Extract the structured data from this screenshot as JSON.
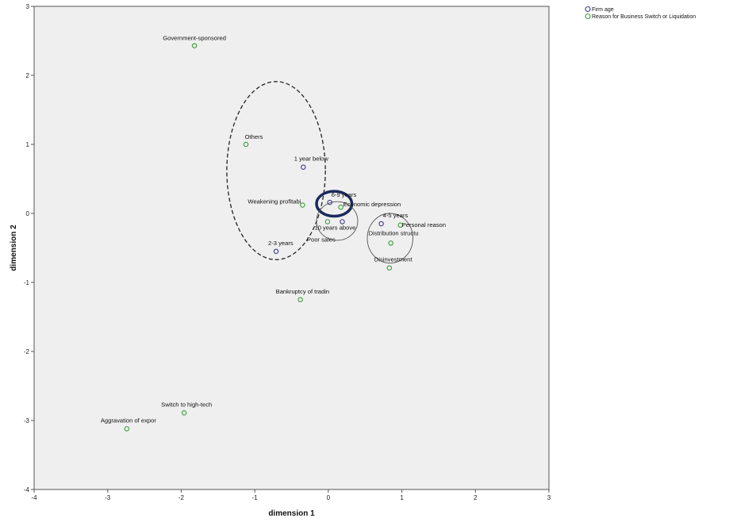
{
  "chart_data": {
    "type": "scatter",
    "xlabel": "dimension 1",
    "ylabel": "dimension 2",
    "xlim": [
      -4,
      3
    ],
    "ylim": [
      -4,
      3
    ],
    "xticks": [
      "-4",
      "-3",
      "-2",
      "-1",
      "0",
      "1",
      "2",
      "3"
    ],
    "yticks": [
      "-4",
      "-3",
      "-2",
      "-1",
      "0",
      "1",
      "2",
      "3"
    ],
    "legend_position": "top-right, outside plot",
    "plot_background": "#efefef",
    "series": [
      {
        "name": "Firm age",
        "color": "#3a3a8c",
        "points": [
          {
            "label": "1 year below",
            "x": -0.34,
            "y": 0.67
          },
          {
            "label": "2-3 years",
            "x": -0.71,
            "y": -0.55
          },
          {
            "label": "4-5 years",
            "x": 0.72,
            "y": -0.15
          },
          {
            "label": "6-9 years",
            "x": 0.02,
            "y": 0.16
          },
          {
            "label": "10 years above",
            "x": 0.19,
            "y": -0.12
          }
        ]
      },
      {
        "name": "Reason for Business Switch or Liquidation",
        "color": "#3c9c3c",
        "points": [
          {
            "label": "Government-sponsored",
            "x": -1.82,
            "y": 2.43
          },
          {
            "label": "Others",
            "x": -1.12,
            "y": 1.0
          },
          {
            "label": "Weakening profitabi",
            "x": -0.35,
            "y": 0.12
          },
          {
            "label": "Economic depression",
            "x": 0.17,
            "y": 0.09
          },
          {
            "label": "Personal reason",
            "x": 0.98,
            "y": -0.17
          },
          {
            "label": "Distribution structu",
            "x": 0.85,
            "y": -0.43
          },
          {
            "label": "Poor sales",
            "x": -0.01,
            "y": -0.12
          },
          {
            "label": "Disinvestment",
            "x": 0.83,
            "y": -0.79
          },
          {
            "label": "Bankruptcy of tradin",
            "x": -0.38,
            "y": -1.25
          },
          {
            "label": "Switch to high-tech",
            "x": -1.96,
            "y": -2.89
          },
          {
            "label": "Aggravation of expor",
            "x": -2.74,
            "y": -3.12
          }
        ]
      }
    ],
    "annotations": [
      {
        "shape": "ellipse",
        "style": "dashed",
        "cx": -0.71,
        "cy": 0.62,
        "rx": 0.67,
        "ry": 1.29
      },
      {
        "shape": "ellipse",
        "style": "bold",
        "cx": 0.08,
        "cy": 0.14,
        "rx": 0.24,
        "ry": 0.18
      },
      {
        "shape": "ellipse",
        "style": "thin",
        "cx": 0.12,
        "cy": -0.11,
        "rx": 0.28,
        "ry": 0.28
      },
      {
        "shape": "ellipse",
        "style": "thin",
        "cx": 0.84,
        "cy": -0.36,
        "rx": 0.31,
        "ry": 0.36
      }
    ]
  }
}
